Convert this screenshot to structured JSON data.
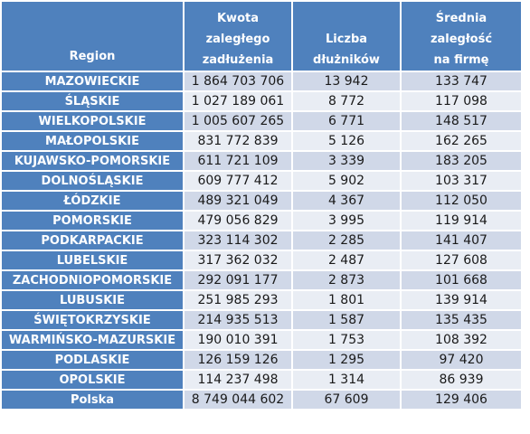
{
  "table": {
    "headers": {
      "region": "Region",
      "kwota_line1": "Kwota",
      "kwota_line2": "zaległego",
      "kwota_line3": "zadłużenia",
      "liczba": "Liczba dłużników",
      "srednia_line1": "Średnia zaległość",
      "srednia_line2": "na firmę"
    },
    "rows": [
      {
        "region": "MAZOWIECKIE",
        "kwota": "1 864 703 706",
        "liczba": "13 942",
        "srednia": "133 747"
      },
      {
        "region": "ŚLĄSKIE",
        "kwota": "1 027 189 061",
        "liczba": "8 772",
        "srednia": "117 098"
      },
      {
        "region": "WIELKOPOLSKIE",
        "kwota": "1 005 607 265",
        "liczba": "6 771",
        "srednia": "148 517"
      },
      {
        "region": "MAŁOPOLSKIE",
        "kwota": "831 772 839",
        "liczba": "5 126",
        "srednia": "162 265"
      },
      {
        "region": "KUJAWSKO-POMORSKIE",
        "kwota": "611 721 109",
        "liczba": "3 339",
        "srednia": "183 205"
      },
      {
        "region": "DOLNOŚLĄSKIE",
        "kwota": "609 777 412",
        "liczba": "5 902",
        "srednia": "103 317"
      },
      {
        "region": "ŁÓDZKIE",
        "kwota": "489 321 049",
        "liczba": "4 367",
        "srednia": "112 050"
      },
      {
        "region": "POMORSKIE",
        "kwota": "479 056 829",
        "liczba": "3 995",
        "srednia": "119 914"
      },
      {
        "region": "PODKARPACKIE",
        "kwota": "323 114 302",
        "liczba": "2 285",
        "srednia": "141 407"
      },
      {
        "region": "LUBELSKIE",
        "kwota": "317 362 032",
        "liczba": "2 487",
        "srednia": "127 608"
      },
      {
        "region": "ZACHODNIOPOMORSKIE",
        "kwota": "292 091 177",
        "liczba": "2 873",
        "srednia": "101 668"
      },
      {
        "region": "LUBUSKIE",
        "kwota": "251 985 293",
        "liczba": "1 801",
        "srednia": "139 914"
      },
      {
        "region": "ŚWIĘTOKRZYSKIE",
        "kwota": "214 935 513",
        "liczba": "1 587",
        "srednia": "135 435"
      },
      {
        "region": "WARMIŃSKO-MAZURSKIE",
        "kwota": "190 010 391",
        "liczba": "1 753",
        "srednia": "108 392"
      },
      {
        "region": "PODLASKIE",
        "kwota": "126 159 126",
        "liczba": "1 295",
        "srednia": "97 420"
      },
      {
        "region": "OPOLSKIE",
        "kwota": "114 237 498",
        "liczba": "1 314",
        "srednia": "86 939"
      },
      {
        "region": "Polska",
        "kwota": "8 749 044 602",
        "liczba": "67 609",
        "srednia": "129 406"
      }
    ],
    "colors": {
      "header": "#4f81bd",
      "row_dark": "#d0d8e8",
      "row_light": "#e9edf4"
    }
  }
}
